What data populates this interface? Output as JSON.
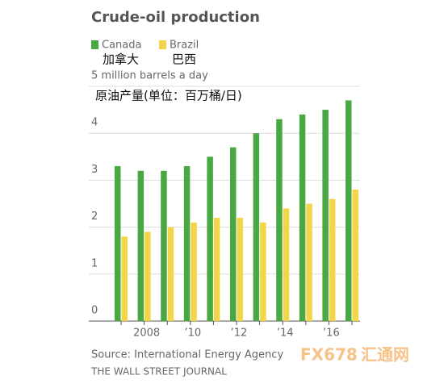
{
  "chart_data": {
    "type": "bar",
    "title": "Crude-oil production",
    "annotations": [
      "加拿大",
      "巴西",
      "原油产量(单位：百万桶/日)"
    ],
    "source": "Source: International Energy Agency",
    "publisher": "THE WALL STREET JOURNAL",
    "watermark": [
      "FX678",
      "汇通网"
    ],
    "categories": [
      null,
      "2008",
      null,
      "’10",
      null,
      "’12",
      null,
      "’14",
      null,
      "’16",
      null
    ],
    "series": [
      {
        "name": "Canada",
        "color": "#4aa843",
        "values": [
          3.3,
          3.2,
          3.2,
          3.3,
          3.5,
          3.7,
          4.0,
          4.3,
          4.4,
          4.5,
          4.7
        ]
      },
      {
        "name": "Brazil",
        "color": "#f2d548",
        "values": [
          1.8,
          1.9,
          2.0,
          2.1,
          2.2,
          2.2,
          2.1,
          2.4,
          2.5,
          2.6,
          2.8
        ]
      }
    ],
    "ylim": [
      0,
      5
    ],
    "yticks": [
      0,
      1,
      2,
      3,
      4,
      {
        "value": 5,
        "label": "5 million barrels a day"
      }
    ],
    "grid": true
  }
}
